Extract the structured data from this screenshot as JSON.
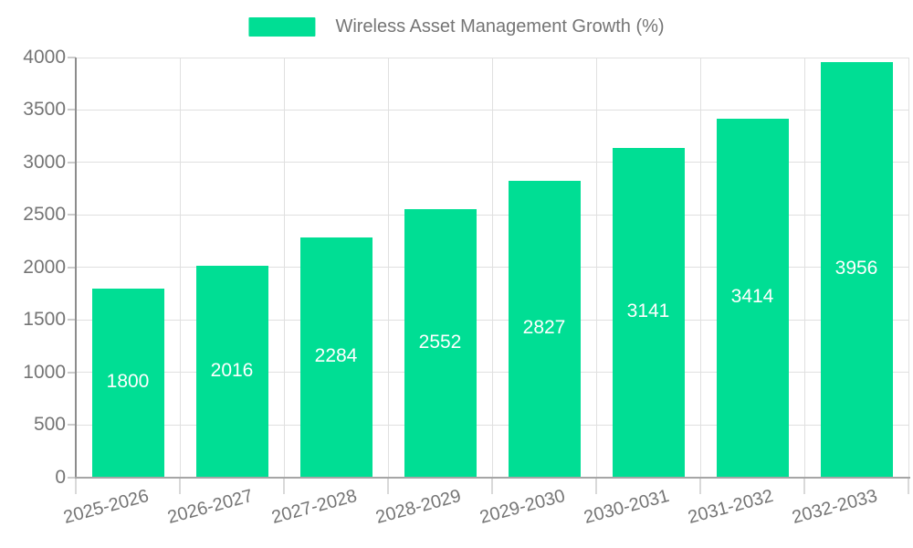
{
  "chart_data": {
    "type": "bar",
    "title": "Wireless Asset Management Growth (%)",
    "categories": [
      "2025-2026",
      "2026-2027",
      "2027-2028",
      "2028-2029",
      "2029-2030",
      "2030-2031",
      "2031-2032",
      "2032-2033"
    ],
    "values": [
      1800,
      2016,
      2284,
      2552,
      2827,
      3141,
      3414,
      3956
    ],
    "xlabel": "",
    "ylabel": "",
    "ylim": [
      0,
      4000
    ],
    "yticks": [
      0,
      500,
      1000,
      1500,
      2000,
      2500,
      3000,
      3500,
      4000
    ],
    "grid": true,
    "legend_position": "top",
    "value_labels": "inside-center",
    "colors": {
      "bar": "#00de94",
      "value_label": "#ffffff",
      "axis_text": "#757575",
      "gridline": "#e0e0e0",
      "axis_line": "#8c8c8c",
      "background": "#ffffff"
    }
  }
}
